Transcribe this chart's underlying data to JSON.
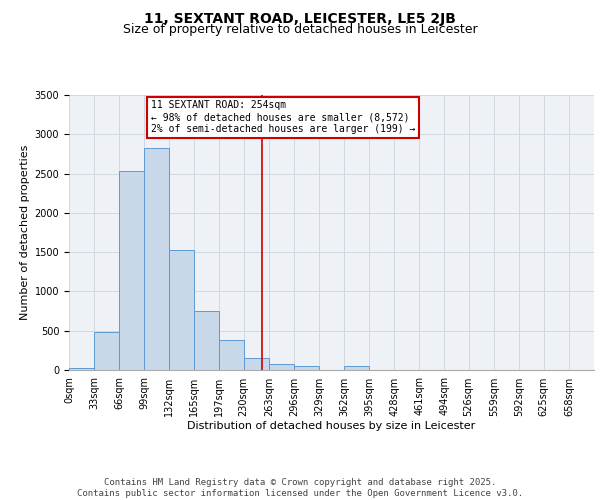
{
  "title1": "11, SEXTANT ROAD, LEICESTER, LE5 2JB",
  "title2": "Size of property relative to detached houses in Leicester",
  "xlabel": "Distribution of detached houses by size in Leicester",
  "ylabel": "Number of detached properties",
  "annotation_line1": "11 SEXTANT ROAD: 254sqm",
  "annotation_line2": "← 98% of detached houses are smaller (8,572)",
  "annotation_line3": "2% of semi-detached houses are larger (199) →",
  "property_size": 254,
  "bar_left_edges": [
    0,
    33,
    66,
    99,
    132,
    165,
    197,
    230,
    263,
    296,
    329,
    362,
    395,
    428,
    461,
    494,
    526,
    559,
    592,
    625
  ],
  "bar_widths": [
    33,
    33,
    33,
    33,
    33,
    32,
    33,
    33,
    33,
    33,
    33,
    33,
    33,
    33,
    33,
    32,
    33,
    33,
    33,
    33
  ],
  "bar_heights": [
    20,
    480,
    2530,
    2830,
    1530,
    750,
    380,
    150,
    80,
    55,
    5,
    50,
    5,
    0,
    0,
    0,
    0,
    0,
    0,
    0
  ],
  "tick_labels": [
    "0sqm",
    "33sqm",
    "66sqm",
    "99sqm",
    "132sqm",
    "165sqm",
    "197sqm",
    "230sqm",
    "263sqm",
    "296sqm",
    "329sqm",
    "362sqm",
    "395sqm",
    "428sqm",
    "461sqm",
    "494sqm",
    "526sqm",
    "559sqm",
    "592sqm",
    "625sqm",
    "658sqm"
  ],
  "ylim": [
    0,
    3500
  ],
  "bar_color": "#c8d8e8",
  "bar_edge_color": "#5b9bd5",
  "vline_color": "#cc0000",
  "vline_x": 254,
  "grid_color": "#d0d8e0",
  "bg_color": "#eef2f7",
  "annotation_box_color": "#cc0000",
  "title1_fontsize": 10,
  "title2_fontsize": 9,
  "axis_label_fontsize": 8,
  "tick_fontsize": 7,
  "footer_text": "Contains HM Land Registry data © Crown copyright and database right 2025.\nContains public sector information licensed under the Open Government Licence v3.0.",
  "footer_fontsize": 6.5
}
